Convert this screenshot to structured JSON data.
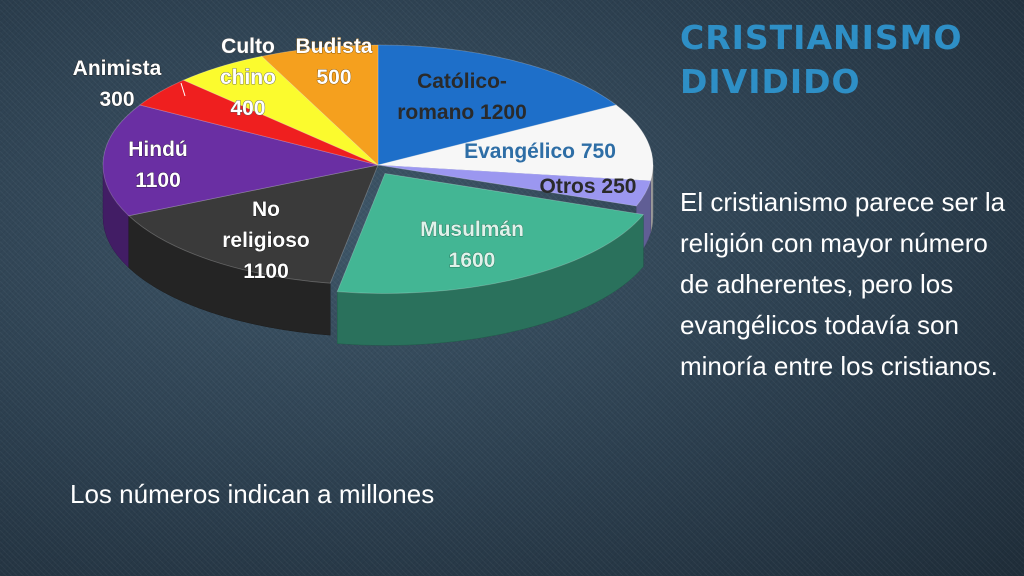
{
  "slide": {
    "title_lines": [
      "CRISTIANISMO",
      "DIVIDIDO"
    ],
    "body": "El cristianismo parece ser la religión con mayor número de adherentes, pero los evangélicos todavía son minoría entre los cristianos.",
    "footnote": "Los números indican a millones"
  },
  "chart_data": {
    "type": "pie",
    "style": "3d-exploded",
    "categories": [
      "Católico-romano",
      "Evangélico",
      "Otros",
      "Musulmán",
      "No religioso",
      "Hindú",
      "Animista",
      "Culto chino",
      "Budista"
    ],
    "values": [
      1200,
      750,
      250,
      1600,
      1100,
      1100,
      300,
      400,
      500
    ],
    "colors": [
      "#1e6fc9",
      "#f7f7f7",
      "#9b97f0",
      "#43b694",
      "#3a3a3a",
      "#6a2fa3",
      "#ef1f1f",
      "#fbfb2e",
      "#f5a01e"
    ],
    "label_lines": [
      [
        "Católico-",
        "romano 1200"
      ],
      [
        "Evangélico 750"
      ],
      [
        "Otros 250"
      ],
      [
        "Musulmán",
        "1600"
      ],
      [
        "No",
        "religioso",
        "1100"
      ],
      [
        "Hindú",
        "1100"
      ],
      [
        "Animista",
        "300"
      ],
      [
        "Culto",
        "chino",
        "400"
      ],
      [
        "Budista",
        "500"
      ]
    ]
  }
}
